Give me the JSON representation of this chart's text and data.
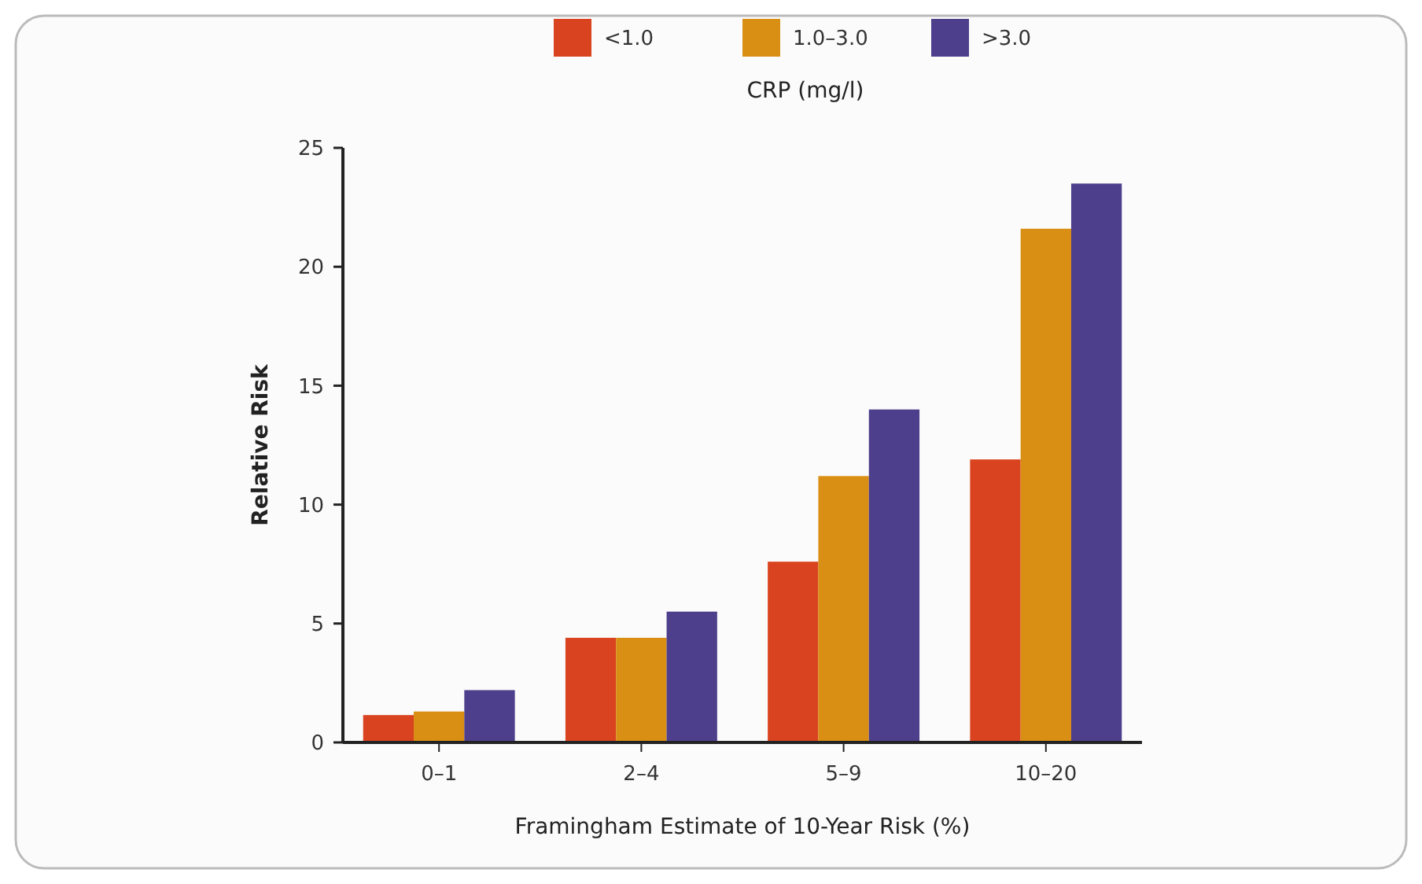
{
  "chart_data": {
    "type": "bar",
    "xlabel": "Framingham Estimate of 10-Year Risk (%)",
    "ylabel": "Relative Risk",
    "legend_title": "CRP (mg/l)",
    "legend": "top",
    "grid": false,
    "categories": [
      "0–1",
      "2–4",
      "5–9",
      "10–20"
    ],
    "series": [
      {
        "name": "<1.0",
        "color": "#d9431f",
        "values": [
          1.15,
          4.4,
          7.6,
          11.9
        ]
      },
      {
        "name": "1.0–3.0",
        "color": "#d98e14",
        "values": [
          1.3,
          4.4,
          11.2,
          21.6
        ]
      },
      {
        "name": ">3.0",
        "color": "#4e3f8c",
        "values": [
          2.2,
          5.5,
          14.0,
          23.5
        ]
      }
    ],
    "ylim": [
      0,
      25
    ],
    "yticks": [
      0,
      5,
      10,
      15,
      20,
      25
    ]
  }
}
